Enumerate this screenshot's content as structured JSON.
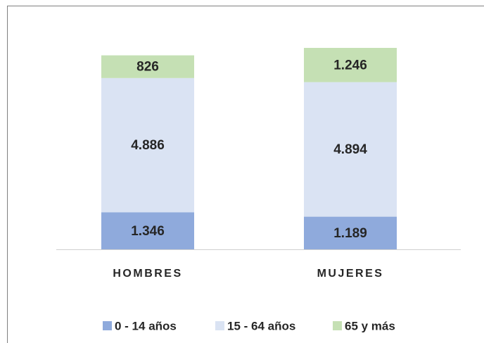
{
  "chart_data": {
    "type": "stacked_bar",
    "categories": [
      "HOMBRES",
      "MUJERES"
    ],
    "series": [
      {
        "name": "0 - 14 años",
        "color": "#8faadc",
        "values": [
          1346,
          1189
        ],
        "value_labels": [
          "1.346",
          "1.189"
        ]
      },
      {
        "name": "15 - 64 años",
        "color": "#dae3f3",
        "values": [
          4886,
          4894
        ],
        "value_labels": [
          "4.886",
          "4.894"
        ]
      },
      {
        "name": "65  y más",
        "color": "#c5e0b4",
        "values": [
          826,
          1246
        ],
        "value_labels": [
          "826",
          "1.246"
        ]
      }
    ],
    "legend": "bottom"
  }
}
